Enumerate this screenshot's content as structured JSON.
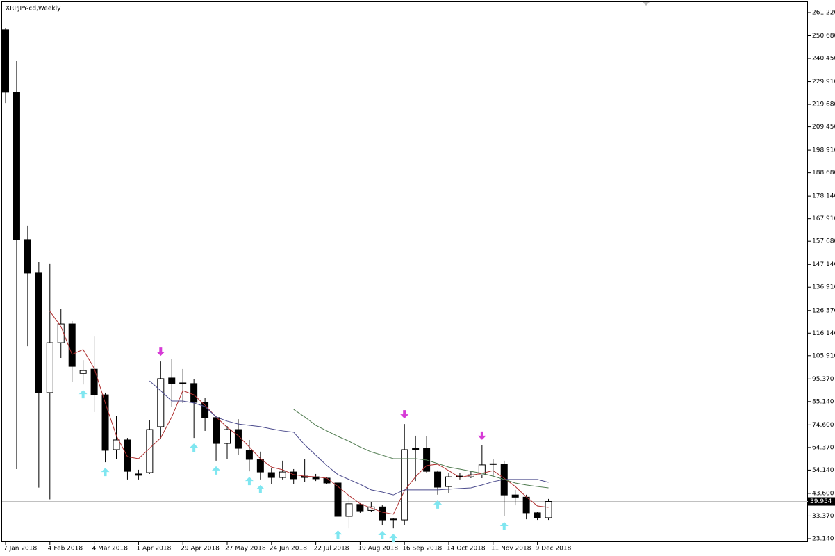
{
  "chart_data": {
    "type": "candlestick",
    "title": "XRPJPY-cd,Weekly",
    "categories": [
      "7 Jan 2018",
      null,
      null,
      null,
      "4 Feb 2018",
      null,
      null,
      null,
      "4 Mar 2018",
      null,
      null,
      null,
      "1 Apr 2018",
      null,
      null,
      null,
      "29 Apr 2018",
      null,
      null,
      null,
      "27 May 2018",
      null,
      null,
      null,
      "24 Jun 2018",
      null,
      null,
      null,
      "22 Jul 2018",
      null,
      null,
      null,
      "19 Aug 2018",
      null,
      null,
      null,
      "16 Sep 2018",
      null,
      null,
      null,
      "14 Oct 2018",
      null,
      null,
      null,
      "11 Nov 2018",
      null,
      null,
      null,
      "9 Dec 2018",
      null
    ],
    "open": [
      253.4,
      225.1,
      158.4,
      143.3,
      89.2,
      111.8,
      120.3,
      97.9,
      99.8,
      88.2,
      63.4,
      67.8,
      52.4,
      53.0,
      73.8,
      95.8,
      93.6,
      93.3,
      84.8,
      77.9,
      66.2,
      72.5,
      63.1,
      59.0,
      53.0,
      50.8,
      53.3,
      51.4,
      51.1,
      50.5,
      48.3,
      33.2,
      38.6,
      35.9,
      37.5,
      32.0,
      31.6,
      64.0,
      64.0,
      53.3,
      46.7,
      51.1,
      51.1,
      52.0,
      57.0,
      56.8,
      42.9,
      41.9,
      34.8,
      32.6
    ],
    "high": [
      254.3,
      239.2,
      164.7,
      148.3,
      147.4,
      127.2,
      121.6,
      103.9,
      114.6,
      89.2,
      78.8,
      68.7,
      54.3,
      76.6,
      103.3,
      104.6,
      99.9,
      95.2,
      86.7,
      78.8,
      74.1,
      77.2,
      67.8,
      62.5,
      55.2,
      58.4,
      54.6,
      59.3,
      52.4,
      51.1,
      48.9,
      42.6,
      39.2,
      39.8,
      38.2,
      32.5,
      75.0,
      69.7,
      69.4,
      54.0,
      53.0,
      53.0,
      53.6,
      65.3,
      59.3,
      58.4,
      45.2,
      43.0,
      35.1,
      41.1
    ],
    "low": [
      220.3,
      54.6,
      110.2,
      46.2,
      40.9,
      104.9,
      93.9,
      92.9,
      80.4,
      57.7,
      59.3,
      49.9,
      49.9,
      52.4,
      68.1,
      82.9,
      84.5,
      68.7,
      71.9,
      58.4,
      59.3,
      60.9,
      53.6,
      49.9,
      47.7,
      49.9,
      47.7,
      48.9,
      49.2,
      47.7,
      29.4,
      27.8,
      34.8,
      35.1,
      29.1,
      27.8,
      29.4,
      49.2,
      53.0,
      43.0,
      43.6,
      49.9,
      50.5,
      50.5,
      51.4,
      33.2,
      38.2,
      31.9,
      31.6,
      31.6
    ],
    "close": [
      225.1,
      158.4,
      143.3,
      89.2,
      111.8,
      120.3,
      101.1,
      99.2,
      88.2,
      63.1,
      67.8,
      53.6,
      51.8,
      72.5,
      95.5,
      93.3,
      93.3,
      84.8,
      77.9,
      66.2,
      72.5,
      64.0,
      59.0,
      53.3,
      50.8,
      53.3,
      50.2,
      50.8,
      50.2,
      48.3,
      33.2,
      38.9,
      35.7,
      37.5,
      31.6,
      31.8,
      63.4,
      63.4,
      53.6,
      46.4,
      51.1,
      51.4,
      52.0,
      56.5,
      56.8,
      42.9,
      41.9,
      34.8,
      32.6,
      39.954
    ],
    "series": [
      {
        "color": "#b03030",
        "values": [
          null,
          null,
          null,
          null,
          126.0,
          119.1,
          106.5,
          108.7,
          100.2,
          84.5,
          69.7,
          60.2,
          59.3,
          64.0,
          68.7,
          78.2,
          90.1,
          88.2,
          83.5,
          78.2,
          73.5,
          69.7,
          64.6,
          59.3,
          55.5,
          54.3,
          52.1,
          51.4,
          51.1,
          50.5,
          46.7,
          42.6,
          38.9,
          37.0,
          35.1,
          34.2,
          44.8,
          51.1,
          56.2,
          56.8,
          53.9,
          50.8,
          51.8,
          52.7,
          53.9,
          50.5,
          46.7,
          42.0,
          37.9,
          37.3
        ]
      },
      {
        "color": "#4a4a8c",
        "values": [
          null,
          null,
          null,
          null,
          null,
          null,
          null,
          null,
          null,
          null,
          null,
          null,
          null,
          94.5,
          90.1,
          85.4,
          85.4,
          84.5,
          82.9,
          78.2,
          76.3,
          75.0,
          74.4,
          73.8,
          72.8,
          71.9,
          71.3,
          65.6,
          60.9,
          56.2,
          52.1,
          49.9,
          47.7,
          45.2,
          44.2,
          42.9,
          45.2,
          45.2,
          45.2,
          45.2,
          45.5,
          45.8,
          46.1,
          47.4,
          48.9,
          49.9,
          49.9,
          49.9,
          49.9,
          48.6
        ]
      },
      {
        "color": "#4e7a4e",
        "values": [
          null,
          null,
          null,
          null,
          null,
          null,
          null,
          null,
          null,
          null,
          null,
          null,
          null,
          null,
          null,
          null,
          null,
          null,
          null,
          null,
          null,
          null,
          null,
          null,
          null,
          null,
          81.6,
          78.2,
          74.4,
          71.9,
          69.4,
          67.2,
          64.6,
          62.4,
          60.9,
          59.3,
          59.3,
          59.3,
          58.7,
          57.1,
          55.5,
          54.6,
          53.6,
          52.7,
          51.4,
          49.9,
          48.3,
          47.4,
          46.7,
          46.1
        ]
      }
    ],
    "fractals_up": [
      7,
      9,
      17,
      19,
      22,
      23,
      30,
      34,
      35,
      39,
      45
    ],
    "fractals_down": [
      14,
      36,
      43
    ],
    "up_color": "#7fe6f0",
    "down_color": "#d63bd6",
    "current_price": {
      "value": 39.954,
      "label": "39.954"
    },
    "ylim": [
      21.56,
      266.25
    ],
    "yticks": [
      {
        "value": 261.22,
        "label": "261.220"
      },
      {
        "value": 250.68,
        "label": "250.680"
      },
      {
        "value": 240.45,
        "label": "240.450"
      },
      {
        "value": 229.91,
        "label": "229.910"
      },
      {
        "value": 219.68,
        "label": "219.680"
      },
      {
        "value": 209.45,
        "label": "209.450"
      },
      {
        "value": 198.91,
        "label": "198.910"
      },
      {
        "value": 188.68,
        "label": "188.680"
      },
      {
        "value": 178.14,
        "label": "178.140"
      },
      {
        "value": 167.91,
        "label": "167.910"
      },
      {
        "value": 157.68,
        "label": "157.680"
      },
      {
        "value": 147.14,
        "label": "147.140"
      },
      {
        "value": 136.91,
        "label": "136.910"
      },
      {
        "value": 126.37,
        "label": "126.370"
      },
      {
        "value": 116.14,
        "label": "116.140"
      },
      {
        "value": 105.91,
        "label": "105.910"
      },
      {
        "value": 95.37,
        "label": "95.370"
      },
      {
        "value": 85.14,
        "label": "85.140"
      },
      {
        "value": 74.6,
        "label": "74.600"
      },
      {
        "value": 64.37,
        "label": "64.370"
      },
      {
        "value": 54.14,
        "label": "54.140"
      },
      {
        "value": 43.6,
        "label": "43.600"
      },
      {
        "value": 33.37,
        "label": "33.370"
      },
      {
        "value": 23.14,
        "label": "23.140"
      }
    ]
  }
}
